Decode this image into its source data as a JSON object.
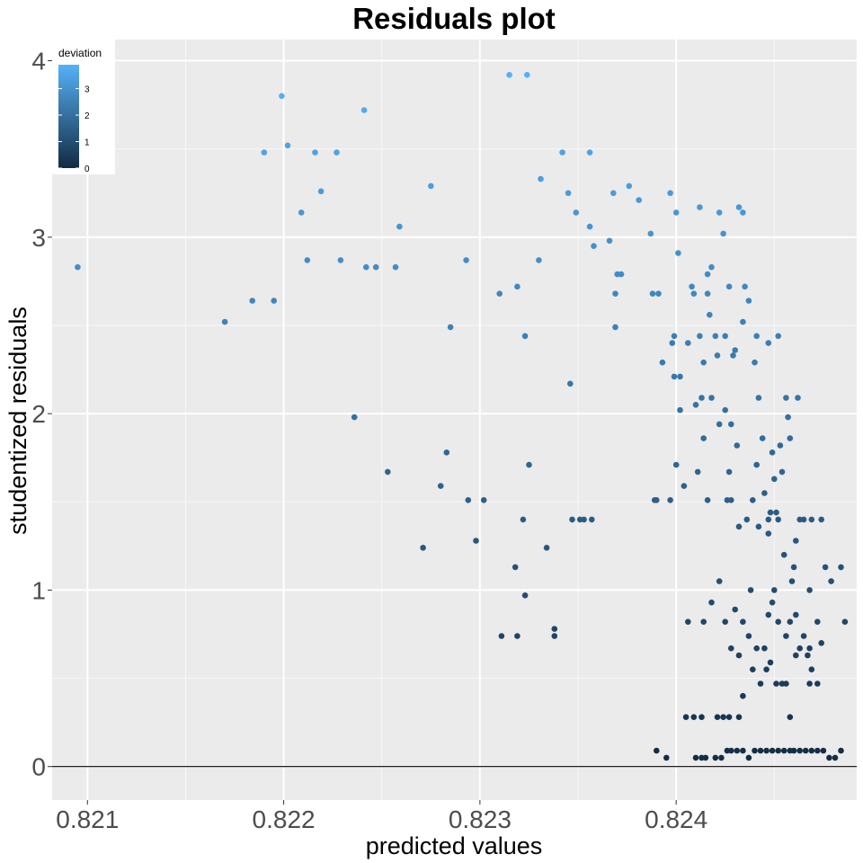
{
  "chart_data": {
    "type": "scatter",
    "title": "Residuals plot",
    "xlabel": "predicted values",
    "ylabel": "studentized residuals",
    "xlim": [
      0.82082,
      0.82492
    ],
    "ylim": [
      -0.19,
      4.12
    ],
    "x_ticks": [
      0.821,
      0.822,
      0.823,
      0.824
    ],
    "x_tick_labels": [
      "0.821",
      "0.822",
      "0.823",
      "0.824"
    ],
    "x_minor_ticks": [
      0.8215,
      0.8225,
      0.8235,
      0.8245
    ],
    "y_ticks": [
      0,
      1,
      2,
      3,
      4
    ],
    "y_tick_labels": [
      "0",
      "1",
      "2",
      "3",
      "4"
    ],
    "y_minor_ticks": [
      0.5,
      1.5,
      2.5,
      3.5
    ],
    "hline": 0,
    "grid": true,
    "color_legend": {
      "title": "deviation",
      "ticks": [
        0,
        1,
        2,
        3
      ],
      "tick_labels": [
        "0",
        "1",
        "2",
        "3"
      ],
      "range": [
        0,
        3.9
      ],
      "low_color": "#132B43",
      "high_color": "#56B1F7",
      "placement": "top-left inside"
    },
    "points": [
      [
        0.82095,
        2.83
      ],
      [
        0.8217,
        2.52
      ],
      [
        0.82184,
        2.64
      ],
      [
        0.82195,
        2.64
      ],
      [
        0.8219,
        3.48
      ],
      [
        0.82199,
        3.8
      ],
      [
        0.82202,
        3.52
      ],
      [
        0.82209,
        3.14
      ],
      [
        0.82212,
        2.87
      ],
      [
        0.82216,
        3.48
      ],
      [
        0.82219,
        3.26
      ],
      [
        0.82227,
        3.48
      ],
      [
        0.82229,
        2.87
      ],
      [
        0.82236,
        1.98
      ],
      [
        0.82241,
        3.72
      ],
      [
        0.82242,
        2.83
      ],
      [
        0.82247,
        2.83
      ],
      [
        0.82253,
        1.67
      ],
      [
        0.82257,
        2.83
      ],
      [
        0.82259,
        3.06
      ],
      [
        0.82271,
        1.24
      ],
      [
        0.82275,
        3.29
      ],
      [
        0.8228,
        1.59
      ],
      [
        0.82283,
        1.78
      ],
      [
        0.82285,
        2.49
      ],
      [
        0.82293,
        2.87
      ],
      [
        0.82294,
        1.51
      ],
      [
        0.82298,
        1.28
      ],
      [
        0.82302,
        1.51
      ],
      [
        0.8231,
        2.68
      ],
      [
        0.82311,
        0.74
      ],
      [
        0.82315,
        3.92
      ],
      [
        0.82318,
        1.13
      ],
      [
        0.82319,
        2.72
      ],
      [
        0.82319,
        0.74
      ],
      [
        0.82322,
        1.4
      ],
      [
        0.82323,
        0.97
      ],
      [
        0.82323,
        2.44
      ],
      [
        0.82324,
        3.92
      ],
      [
        0.82325,
        1.71
      ],
      [
        0.8233,
        2.87
      ],
      [
        0.82331,
        3.33
      ],
      [
        0.82334,
        1.24
      ],
      [
        0.82338,
        0.78
      ],
      [
        0.82338,
        0.74
      ],
      [
        0.82342,
        3.48
      ],
      [
        0.82345,
        3.25
      ],
      [
        0.82346,
        2.17
      ],
      [
        0.82347,
        1.4
      ],
      [
        0.82349,
        3.14
      ],
      [
        0.82351,
        1.4
      ],
      [
        0.82353,
        1.4
      ],
      [
        0.82356,
        3.06
      ],
      [
        0.82356,
        3.48
      ],
      [
        0.82357,
        1.4
      ],
      [
        0.82358,
        2.95
      ],
      [
        0.82366,
        2.98
      ],
      [
        0.82368,
        3.25
      ],
      [
        0.82369,
        2.68
      ],
      [
        0.82369,
        2.49
      ],
      [
        0.8237,
        2.79
      ],
      [
        0.82372,
        2.79
      ],
      [
        0.82376,
        3.29
      ],
      [
        0.82381,
        3.21
      ],
      [
        0.82387,
        3.02
      ],
      [
        0.82388,
        2.68
      ],
      [
        0.82389,
        1.51
      ],
      [
        0.82391,
        2.68
      ],
      [
        0.8239,
        1.51
      ],
      [
        0.82393,
        2.29
      ],
      [
        0.82397,
        1.51
      ],
      [
        0.82397,
        3.25
      ],
      [
        0.82398,
        2.4
      ],
      [
        0.82399,
        2.21
      ],
      [
        0.824,
        3.14
      ],
      [
        0.824,
        1.71
      ],
      [
        0.82399,
        2.44
      ],
      [
        0.82401,
        2.91
      ],
      [
        0.82402,
        2.21
      ],
      [
        0.82402,
        2.02
      ],
      [
        0.82404,
        1.59
      ],
      [
        0.82406,
        2.4
      ],
      [
        0.82408,
        2.72
      ],
      [
        0.82409,
        2.68
      ],
      [
        0.8241,
        2.05
      ],
      [
        0.82411,
        1.67
      ],
      [
        0.82412,
        3.17
      ],
      [
        0.82412,
        2.44
      ],
      [
        0.82413,
        2.09
      ],
      [
        0.82414,
        1.86
      ],
      [
        0.82414,
        2.29
      ],
      [
        0.82416,
        1.51
      ],
      [
        0.82416,
        2.68
      ],
      [
        0.82416,
        2.79
      ],
      [
        0.82417,
        2.56
      ],
      [
        0.82418,
        2.83
      ],
      [
        0.82418,
        2.09
      ],
      [
        0.8242,
        2.44
      ],
      [
        0.82421,
        2.33
      ],
      [
        0.82422,
        1.94
      ],
      [
        0.82422,
        3.14
      ],
      [
        0.82424,
        3.02
      ],
      [
        0.82425,
        2.02
      ],
      [
        0.82425,
        2.44
      ],
      [
        0.82426,
        1.51
      ],
      [
        0.82427,
        2.72
      ],
      [
        0.82427,
        1.67
      ],
      [
        0.82428,
        1.94
      ],
      [
        0.82428,
        1.51
      ],
      [
        0.82429,
        2.33
      ],
      [
        0.8243,
        2.36
      ],
      [
        0.82431,
        1.82
      ],
      [
        0.82432,
        1.36
      ],
      [
        0.82432,
        3.17
      ],
      [
        0.82434,
        3.14
      ],
      [
        0.82434,
        2.52
      ],
      [
        0.82435,
        2.72
      ],
      [
        0.82436,
        1.4
      ],
      [
        0.82437,
        2.64
      ],
      [
        0.82439,
        1.51
      ],
      [
        0.8244,
        2.29
      ],
      [
        0.82441,
        1.71
      ],
      [
        0.82441,
        2.44
      ],
      [
        0.82442,
        1.36
      ],
      [
        0.82442,
        2.09
      ],
      [
        0.82444,
        1.86
      ],
      [
        0.82445,
        1.55
      ],
      [
        0.82447,
        1.32
      ],
      [
        0.82447,
        1.4
      ],
      [
        0.82447,
        2.4
      ],
      [
        0.82448,
        1.44
      ],
      [
        0.82449,
        1.78
      ],
      [
        0.8245,
        1.63
      ],
      [
        0.82451,
        1.44
      ],
      [
        0.82452,
        2.44
      ],
      [
        0.82452,
        1.4
      ],
      [
        0.82453,
        1.82
      ],
      [
        0.82454,
        1.67
      ],
      [
        0.82455,
        1.2
      ],
      [
        0.82456,
        2.09
      ],
      [
        0.82457,
        1.98
      ],
      [
        0.82458,
        1.86
      ],
      [
        0.8246,
        1.13
      ],
      [
        0.82461,
        1.28
      ],
      [
        0.82462,
        2.09
      ],
      [
        0.82463,
        1.4
      ],
      [
        0.82465,
        1.4
      ],
      [
        0.82468,
        1.0
      ],
      [
        0.82469,
        1.4
      ],
      [
        0.82472,
        0.82
      ],
      [
        0.82474,
        1.4
      ],
      [
        0.82476,
        1.13
      ],
      [
        0.82479,
        1.05
      ],
      [
        0.82484,
        1.13
      ],
      [
        0.82486,
        0.82
      ],
      [
        0.82406,
        0.82
      ],
      [
        0.82414,
        0.82
      ],
      [
        0.82418,
        0.93
      ],
      [
        0.82422,
        1.05
      ],
      [
        0.82425,
        0.82
      ],
      [
        0.8243,
        0.89
      ],
      [
        0.82434,
        0.82
      ],
      [
        0.82438,
        1.0
      ],
      [
        0.82441,
        0.67
      ],
      [
        0.82445,
        0.67
      ],
      [
        0.82447,
        0.86
      ],
      [
        0.82449,
        0.93
      ],
      [
        0.8245,
        1.0
      ],
      [
        0.82452,
        0.82
      ],
      [
        0.82456,
        0.74
      ],
      [
        0.82458,
        0.82
      ],
      [
        0.82459,
        1.05
      ],
      [
        0.82461,
        0.86
      ],
      [
        0.82463,
        0.67
      ],
      [
        0.82465,
        0.74
      ],
      [
        0.82467,
        0.63
      ],
      [
        0.82468,
        0.67
      ],
      [
        0.82469,
        0.55
      ],
      [
        0.82472,
        0.47
      ],
      [
        0.82474,
        0.7
      ],
      [
        0.82428,
        0.67
      ],
      [
        0.82432,
        0.63
      ],
      [
        0.82437,
        0.74
      ],
      [
        0.82439,
        0.55
      ],
      [
        0.82443,
        0.47
      ],
      [
        0.82446,
        0.55
      ],
      [
        0.82448,
        0.59
      ],
      [
        0.82451,
        0.47
      ],
      [
        0.82454,
        0.47
      ],
      [
        0.82456,
        0.47
      ],
      [
        0.82461,
        0.63
      ],
      [
        0.82468,
        0.47
      ],
      [
        0.82434,
        0.4
      ],
      [
        0.82405,
        0.28
      ],
      [
        0.82409,
        0.28
      ],
      [
        0.82413,
        0.28
      ],
      [
        0.82421,
        0.28
      ],
      [
        0.82424,
        0.28
      ],
      [
        0.82427,
        0.28
      ],
      [
        0.82432,
        0.28
      ],
      [
        0.82458,
        0.28
      ],
      [
        0.8239,
        0.09
      ],
      [
        0.82395,
        0.05
      ],
      [
        0.8241,
        0.05
      ],
      [
        0.82413,
        0.05
      ],
      [
        0.82415,
        0.05
      ],
      [
        0.8242,
        0.05
      ],
      [
        0.82423,
        0.05
      ],
      [
        0.82426,
        0.09
      ],
      [
        0.82428,
        0.09
      ],
      [
        0.82431,
        0.09
      ],
      [
        0.82434,
        0.09
      ],
      [
        0.82437,
        0.05
      ],
      [
        0.8244,
        0.09
      ],
      [
        0.82443,
        0.09
      ],
      [
        0.82446,
        0.09
      ],
      [
        0.82449,
        0.09
      ],
      [
        0.82452,
        0.09
      ],
      [
        0.82455,
        0.09
      ],
      [
        0.82458,
        0.09
      ],
      [
        0.8246,
        0.09
      ],
      [
        0.82463,
        0.09
      ],
      [
        0.82466,
        0.09
      ],
      [
        0.82469,
        0.09
      ],
      [
        0.82472,
        0.09
      ],
      [
        0.82475,
        0.09
      ],
      [
        0.82478,
        0.05
      ],
      [
        0.82481,
        0.05
      ],
      [
        0.82484,
        0.09
      ]
    ]
  }
}
